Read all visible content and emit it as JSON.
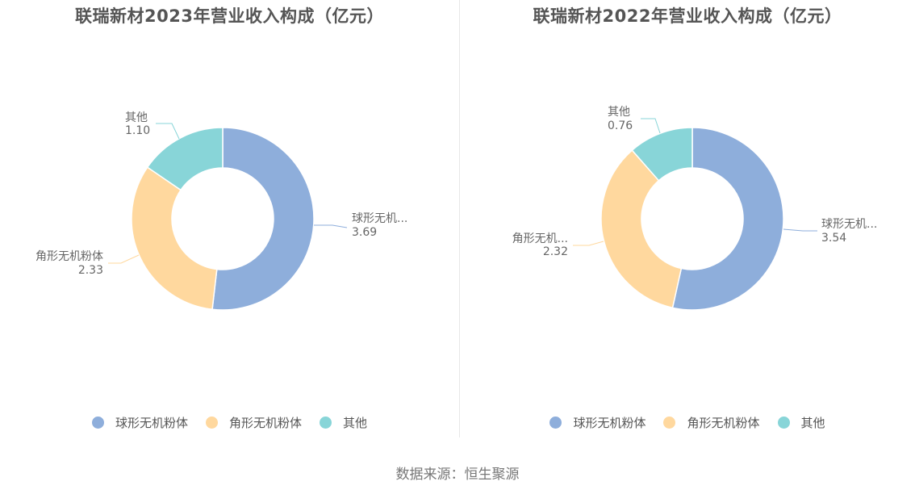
{
  "colors": {
    "spherical": "#8EAEDB",
    "angular": "#FFD89E",
    "other": "#88D5D8"
  },
  "source": "数据来源：恒生聚源",
  "charts": [
    {
      "title": "联瑞新材2023年营业收入构成（亿元）",
      "labels": [
        {
          "name": "球形无机...",
          "value": "3.69"
        },
        {
          "name": "角形无机粉体",
          "value": "2.33"
        },
        {
          "name": "其他",
          "value": "1.10"
        }
      ],
      "legend": [
        "球形无机粉体",
        "角形无机粉体",
        "其他"
      ]
    },
    {
      "title": "联瑞新材2022年营业收入构成（亿元）",
      "labels": [
        {
          "name": "球形无机...",
          "value": "3.54"
        },
        {
          "name": "角形无机...",
          "value": "2.32"
        },
        {
          "name": "其他",
          "value": "0.76"
        }
      ],
      "legend": [
        "球形无机粉体",
        "角形无机粉体",
        "其他"
      ]
    }
  ],
  "chart_data": [
    {
      "type": "pie",
      "title": "联瑞新材2023年营业收入构成（亿元）",
      "categories": [
        "球形无机粉体",
        "角形无机粉体",
        "其他"
      ],
      "values": [
        3.69,
        2.33,
        1.1
      ],
      "donut": true,
      "legend_position": "bottom"
    },
    {
      "type": "pie",
      "title": "联瑞新材2022年营业收入构成（亿元）",
      "categories": [
        "球形无机粉体",
        "角形无机粉体",
        "其他"
      ],
      "values": [
        3.54,
        2.32,
        0.76
      ],
      "donut": true,
      "legend_position": "bottom"
    }
  ]
}
